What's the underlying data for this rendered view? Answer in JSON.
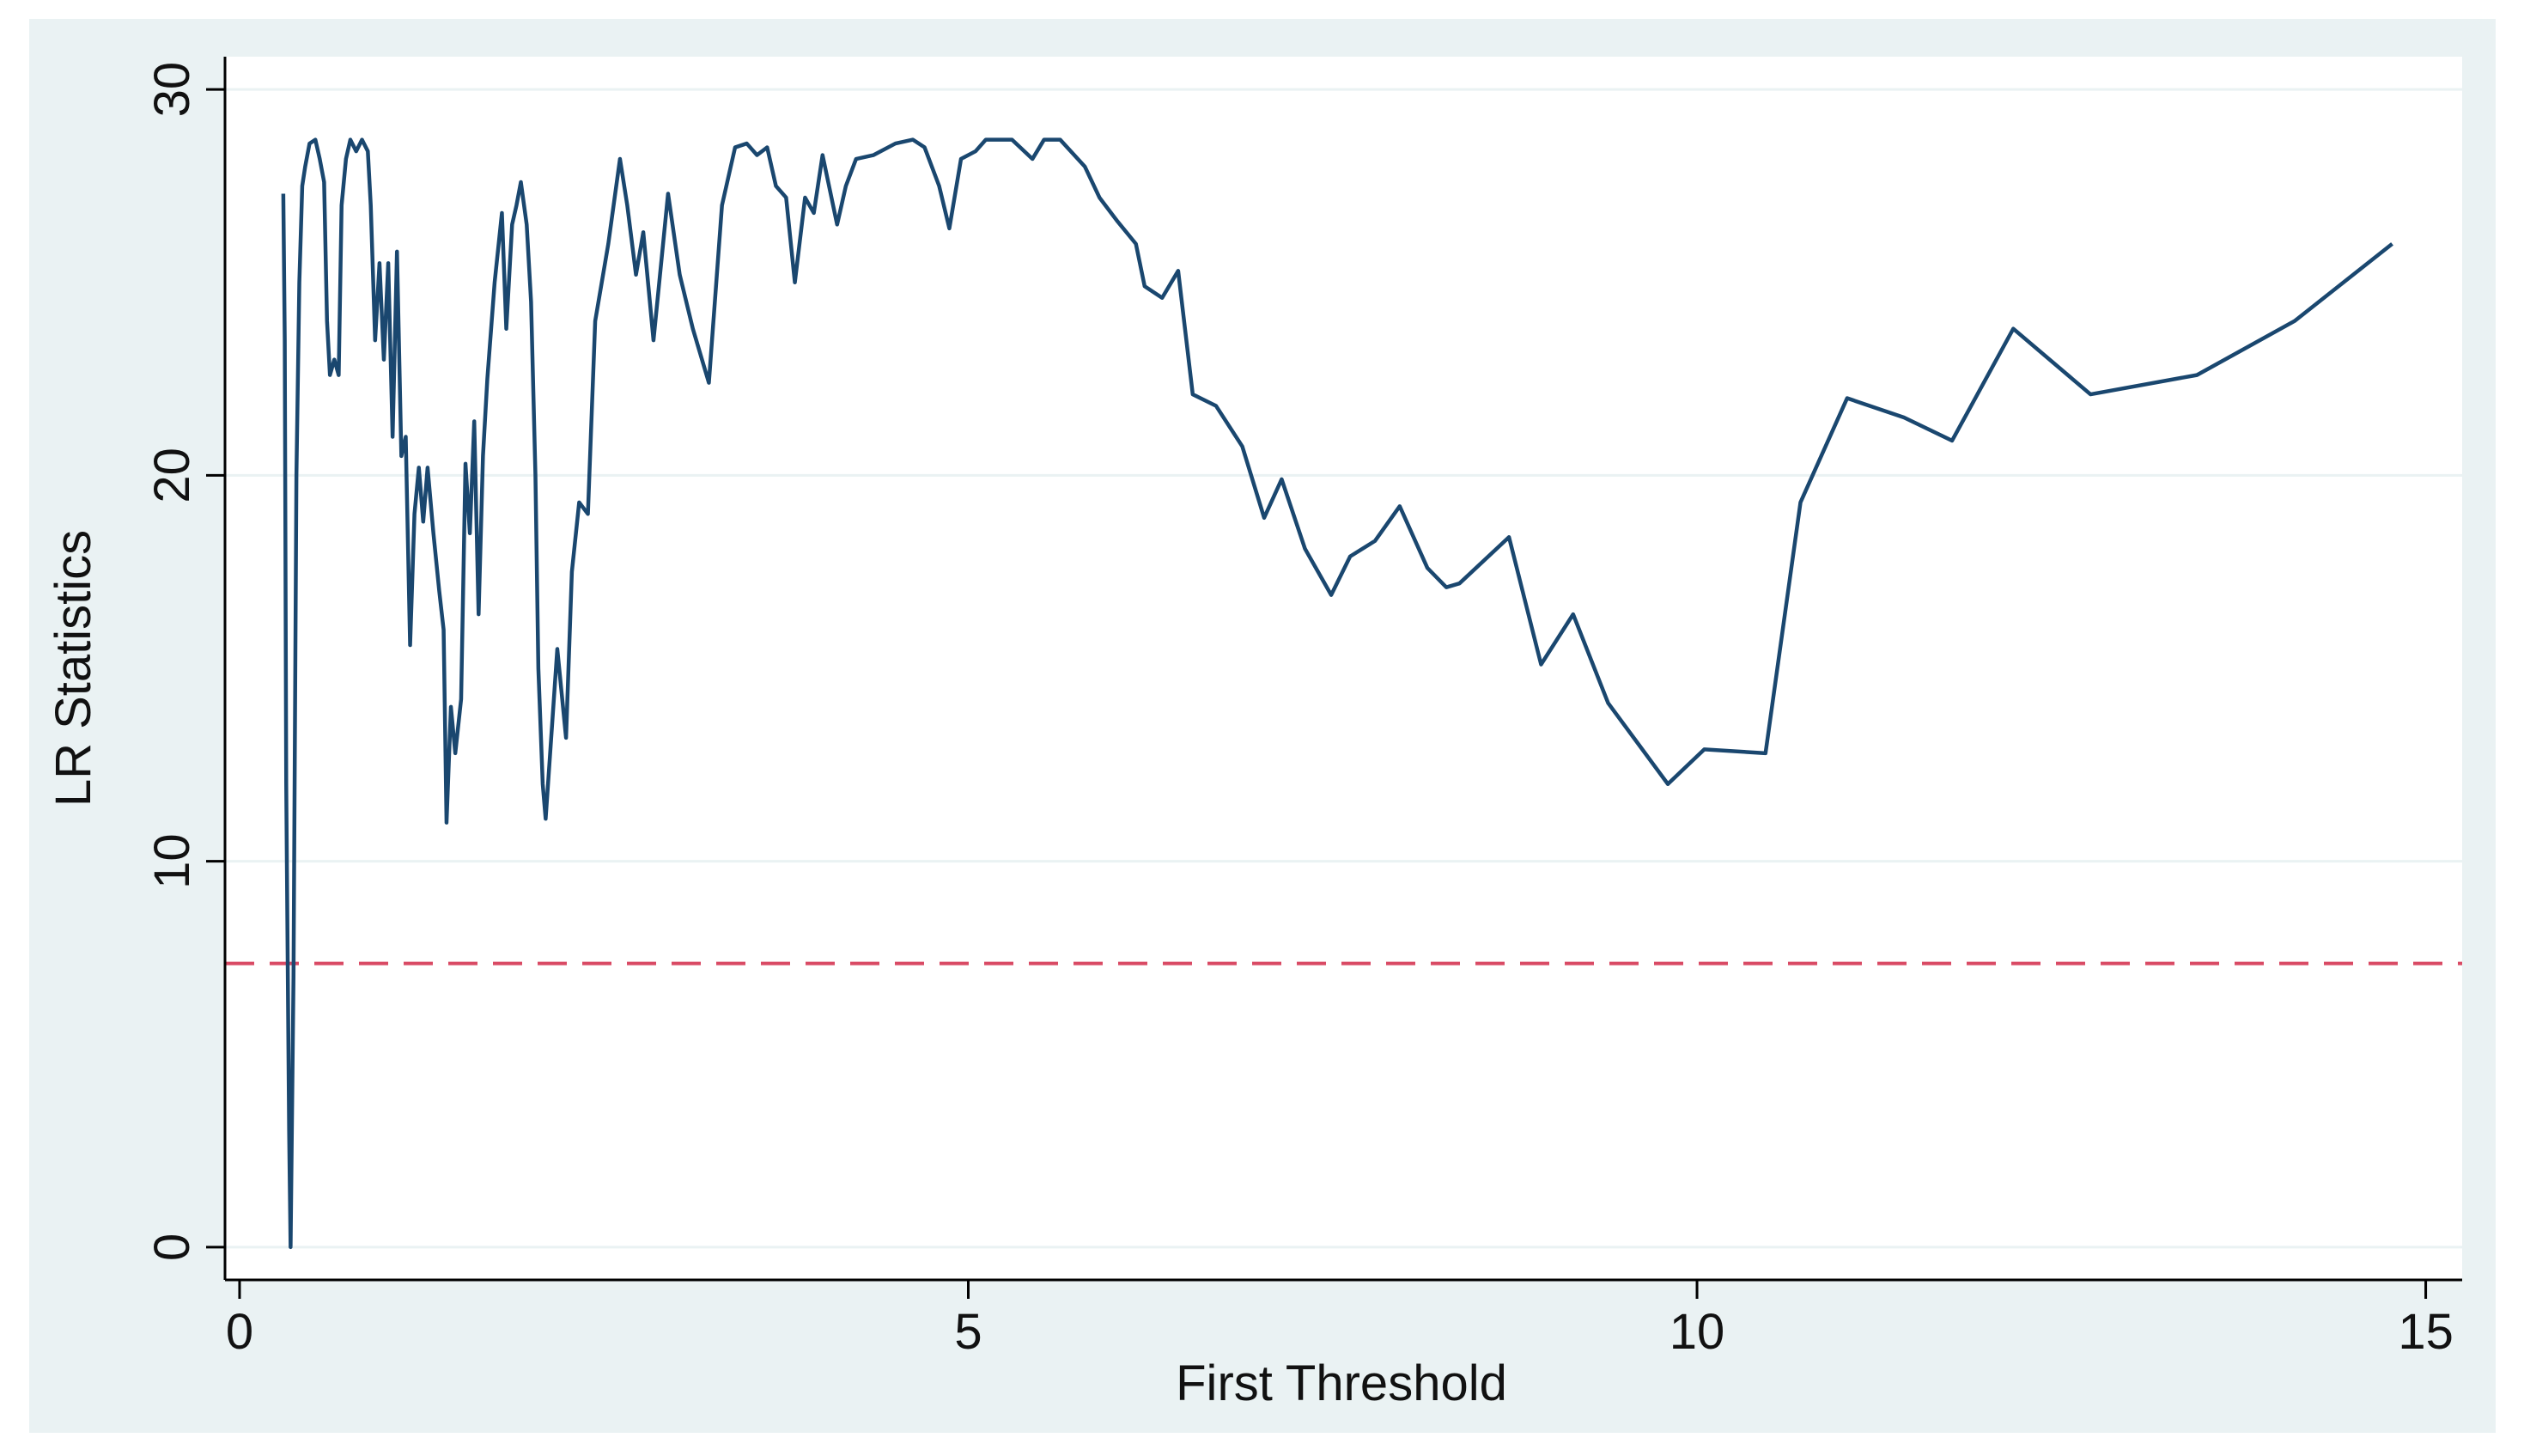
{
  "chart_data": {
    "type": "line",
    "xlabel": "First Threshold",
    "ylabel": "LR Statistics",
    "xlim": [
      -0.1,
      15.25
    ],
    "ylim": [
      -0.85,
      30.85
    ],
    "xticks": [
      0,
      5,
      10,
      15
    ],
    "yticks": [
      0,
      10,
      20,
      30
    ],
    "grid": true,
    "color": "#1a476f",
    "reference_line": {
      "value": 7.35,
      "color": "#d94a64",
      "style": "dashed"
    },
    "x": [
      0.3,
      0.31,
      0.32,
      0.34,
      0.35,
      0.37,
      0.39,
      0.41,
      0.43,
      0.45,
      0.48,
      0.52,
      0.55,
      0.58,
      0.6,
      0.62,
      0.65,
      0.68,
      0.7,
      0.73,
      0.76,
      0.8,
      0.84,
      0.88,
      0.9,
      0.93,
      0.96,
      0.99,
      1.02,
      1.05,
      1.08,
      1.11,
      1.14,
      1.17,
      1.2,
      1.23,
      1.26,
      1.29,
      1.33,
      1.37,
      1.4,
      1.42,
      1.45,
      1.48,
      1.52,
      1.55,
      1.58,
      1.61,
      1.64,
      1.67,
      1.7,
      1.75,
      1.8,
      1.83,
      1.87,
      1.9,
      1.93,
      1.97,
      2.0,
      2.03,
      2.05,
      2.08,
      2.1,
      2.18,
      2.24,
      2.28,
      2.33,
      2.39,
      2.44,
      2.53,
      2.61,
      2.66,
      2.72,
      2.77,
      2.84,
      2.94,
      3.02,
      3.11,
      3.22,
      3.31,
      3.4,
      3.48,
      3.55,
      3.62,
      3.68,
      3.75,
      3.81,
      3.88,
      3.94,
      4.0,
      4.1,
      4.16,
      4.23,
      4.35,
      4.5,
      4.62,
      4.7,
      4.8,
      4.87,
      4.95,
      5.05,
      5.12,
      5.3,
      5.44,
      5.52,
      5.63,
      5.8,
      5.9,
      6.02,
      6.15,
      6.21,
      6.33,
      6.44,
      6.54,
      6.7,
      6.88,
      7.03,
      7.15,
      7.31,
      7.49,
      7.62,
      7.79,
      7.96,
      8.15,
      8.28,
      8.37,
      8.71,
      8.93,
      9.15,
      9.39,
      9.8,
      10.05,
      10.47,
      10.71,
      11.03,
      11.42,
      11.75,
      12.17,
      12.7,
      13.43,
      14.1,
      14.77
    ],
    "values": [
      27.3,
      23.5,
      12,
      3,
      0,
      7,
      20,
      25,
      27.5,
      28,
      28.6,
      28.7,
      28.2,
      27.6,
      24,
      22.6,
      23,
      22.6,
      27,
      28.2,
      28.7,
      28.4,
      28.7,
      28.4,
      27,
      23.5,
      25.5,
      23,
      25.5,
      21,
      25.8,
      20.5,
      21,
      15.6,
      19,
      20.2,
      18.8,
      20.2,
      18.5,
      17,
      16,
      11,
      14,
      12.8,
      14.2,
      20.3,
      18.5,
      21.4,
      16.4,
      20.5,
      22.5,
      25,
      26.8,
      23.8,
      26.5,
      27,
      27.6,
      26.5,
      24.5,
      20,
      15,
      12,
      11.1,
      15.5,
      13.2,
      17.5,
      19.3,
      19,
      24,
      26,
      28.2,
      27,
      25.2,
      26.3,
      23.5,
      27.3,
      25.2,
      23.8,
      22.4,
      27,
      28.5,
      28.6,
      28.3,
      28.5,
      27.5,
      27.2,
      25,
      27.2,
      26.8,
      28.3,
      26.5,
      27.5,
      28.2,
      28.3,
      28.6,
      28.7,
      28.5,
      27.5,
      26.4,
      28.2,
      28.4,
      28.7,
      28.7,
      28.2,
      28.7,
      28.7,
      28,
      27.2,
      26.6,
      26,
      24.9,
      24.6,
      25.3,
      22.1,
      21.8,
      20.75,
      18.9,
      19.9,
      18.1,
      16.9,
      17.9,
      18.3,
      19.2,
      17.6,
      17.1,
      17.2,
      18.4,
      15.1,
      16.4,
      14.1,
      12.0,
      12.9,
      12.8,
      19.3,
      22.0,
      21.5,
      20.9,
      23.8,
      22.1,
      22.6,
      24.0,
      26.0
    ]
  }
}
